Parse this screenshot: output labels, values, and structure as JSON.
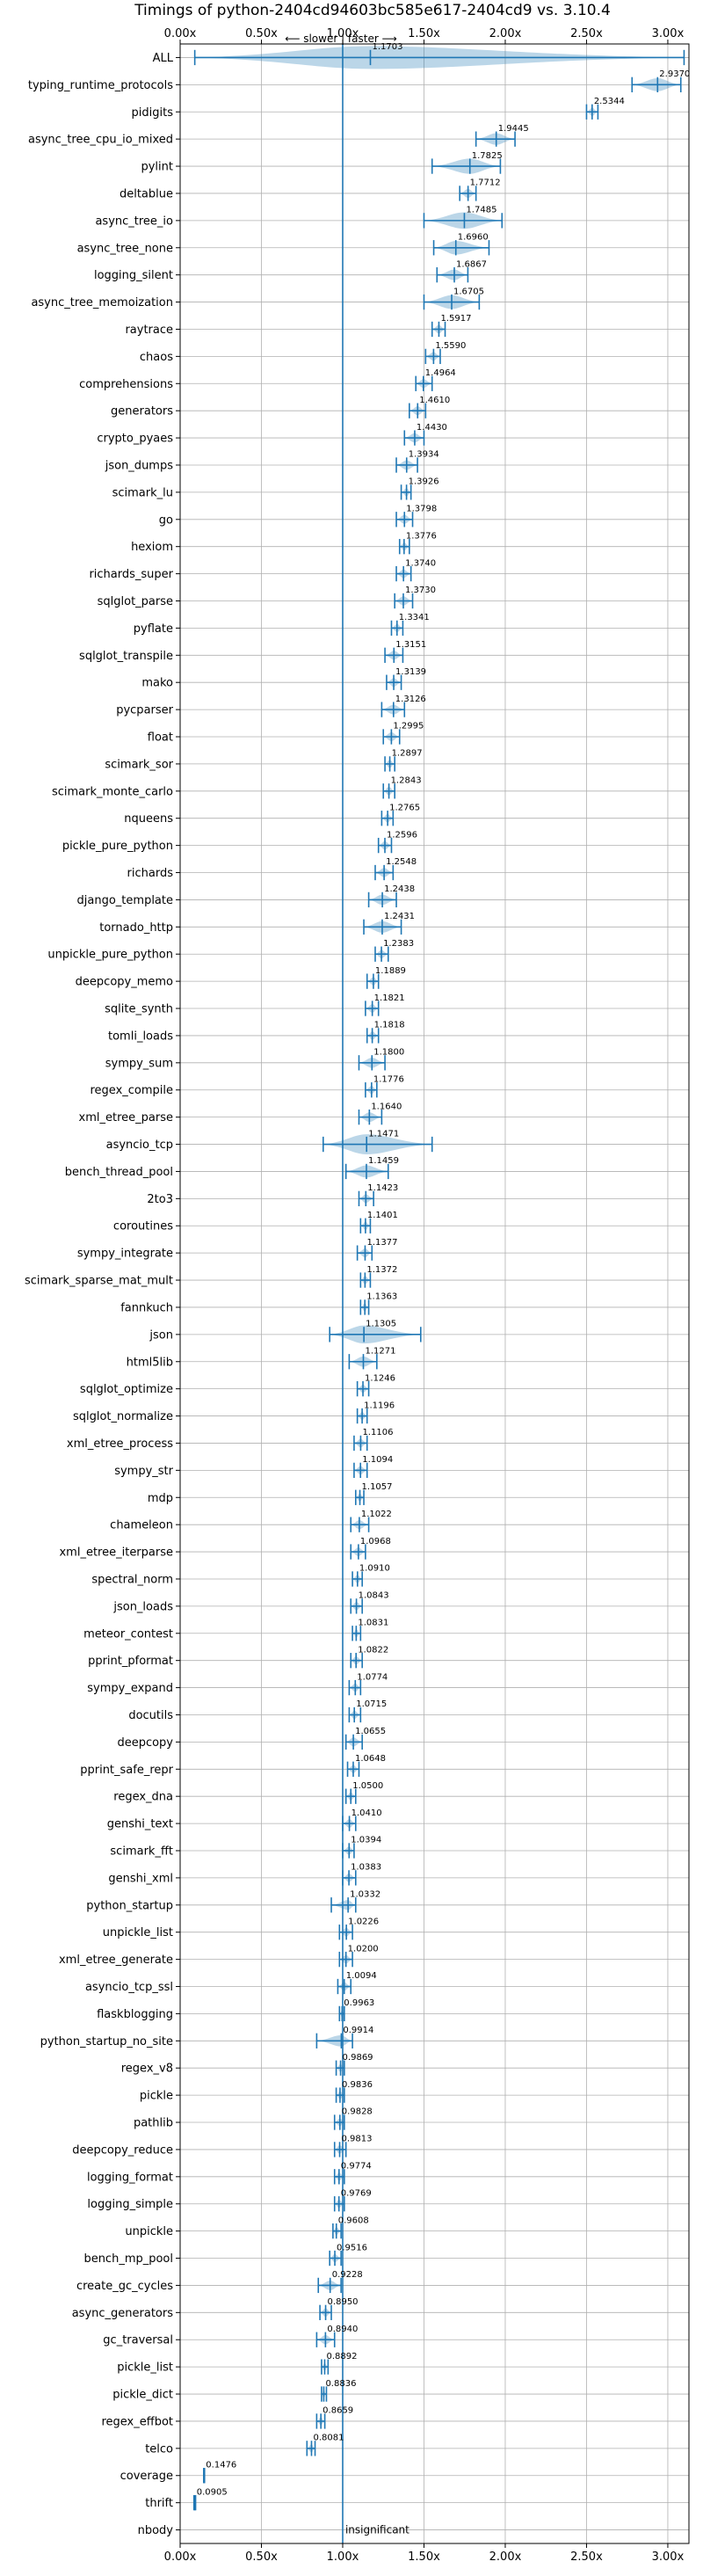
{
  "chart_data": {
    "type": "violin",
    "title": "Timings of python-2404cd94603bc585e617-2404cd9 vs. 3.10.4",
    "xlim": [
      0.0,
      3.13
    ],
    "xticks": [
      "0.00x",
      "0.50x",
      "1.00x",
      "1.50x",
      "2.00x",
      "2.50x",
      "3.00x"
    ],
    "xtick_values": [
      0.0,
      0.5,
      1.0,
      1.5,
      2.0,
      2.5,
      3.0
    ],
    "grid": true,
    "direction_annotation": "⟵ slower | faster ⟶",
    "insignificant_label": "insignificant",
    "colors": {
      "violin": "#1f77b4",
      "significant_line": "#d62728",
      "grid": "#b0b0b0"
    },
    "benchmarks": [
      {
        "name": "ALL",
        "value": 1.1703,
        "label": "1.1703",
        "low": 0.09,
        "high": 3.1
      },
      {
        "name": "typing_runtime_protocols",
        "value": 2.937,
        "label": "2.9370",
        "low": 2.78,
        "high": 3.08
      },
      {
        "name": "pidigits",
        "value": 2.5344,
        "label": "2.5344",
        "low": 2.5,
        "high": 2.57
      },
      {
        "name": "async_tree_cpu_io_mixed",
        "value": 1.9445,
        "label": "1.9445",
        "low": 1.82,
        "high": 2.06
      },
      {
        "name": "pylint",
        "value": 1.7825,
        "label": "1.7825",
        "low": 1.55,
        "high": 1.97
      },
      {
        "name": "deltablue",
        "value": 1.7712,
        "label": "1.7712",
        "low": 1.72,
        "high": 1.82
      },
      {
        "name": "async_tree_io",
        "value": 1.7485,
        "label": "1.7485",
        "low": 1.5,
        "high": 1.98
      },
      {
        "name": "async_tree_none",
        "value": 1.696,
        "label": "1.6960",
        "low": 1.56,
        "high": 1.9
      },
      {
        "name": "logging_silent",
        "value": 1.6867,
        "label": "1.6867",
        "low": 1.58,
        "high": 1.77
      },
      {
        "name": "async_tree_memoization",
        "value": 1.6705,
        "label": "1.6705",
        "low": 1.5,
        "high": 1.84
      },
      {
        "name": "raytrace",
        "value": 1.5917,
        "label": "1.5917",
        "low": 1.55,
        "high": 1.63
      },
      {
        "name": "chaos",
        "value": 1.559,
        "label": "1.5590",
        "low": 1.51,
        "high": 1.6
      },
      {
        "name": "comprehensions",
        "value": 1.4964,
        "label": "1.4964",
        "low": 1.45,
        "high": 1.55
      },
      {
        "name": "generators",
        "value": 1.461,
        "label": "1.4610",
        "low": 1.41,
        "high": 1.51
      },
      {
        "name": "crypto_pyaes",
        "value": 1.443,
        "label": "1.4430",
        "low": 1.38,
        "high": 1.5
      },
      {
        "name": "json_dumps",
        "value": 1.3934,
        "label": "1.3934",
        "low": 1.33,
        "high": 1.46
      },
      {
        "name": "scimark_lu",
        "value": 1.3926,
        "label": "1.3926",
        "low": 1.36,
        "high": 1.42
      },
      {
        "name": "go",
        "value": 1.3798,
        "label": "1.3798",
        "low": 1.33,
        "high": 1.43
      },
      {
        "name": "hexiom",
        "value": 1.3776,
        "label": "1.3776",
        "low": 1.35,
        "high": 1.41
      },
      {
        "name": "richards_super",
        "value": 1.374,
        "label": "1.3740",
        "low": 1.33,
        "high": 1.42
      },
      {
        "name": "sqlglot_parse",
        "value": 1.373,
        "label": "1.3730",
        "low": 1.32,
        "high": 1.43
      },
      {
        "name": "pyflate",
        "value": 1.3341,
        "label": "1.3341",
        "low": 1.3,
        "high": 1.37
      },
      {
        "name": "sqlglot_transpile",
        "value": 1.3151,
        "label": "1.3151",
        "low": 1.26,
        "high": 1.37
      },
      {
        "name": "mako",
        "value": 1.3139,
        "label": "1.3139",
        "low": 1.27,
        "high": 1.36
      },
      {
        "name": "pycparser",
        "value": 1.3126,
        "label": "1.3126",
        "low": 1.24,
        "high": 1.38
      },
      {
        "name": "float",
        "value": 1.2995,
        "label": "1.2995",
        "low": 1.25,
        "high": 1.35
      },
      {
        "name": "scimark_sor",
        "value": 1.2897,
        "label": "1.2897",
        "low": 1.26,
        "high": 1.32
      },
      {
        "name": "scimark_monte_carlo",
        "value": 1.2843,
        "label": "1.2843",
        "low": 1.25,
        "high": 1.32
      },
      {
        "name": "nqueens",
        "value": 1.2765,
        "label": "1.2765",
        "low": 1.24,
        "high": 1.31
      },
      {
        "name": "pickle_pure_python",
        "value": 1.2596,
        "label": "1.2596",
        "low": 1.22,
        "high": 1.3
      },
      {
        "name": "richards",
        "value": 1.2548,
        "label": "1.2548",
        "low": 1.2,
        "high": 1.31
      },
      {
        "name": "django_template",
        "value": 1.2438,
        "label": "1.2438",
        "low": 1.16,
        "high": 1.33
      },
      {
        "name": "tornado_http",
        "value": 1.2431,
        "label": "1.2431",
        "low": 1.13,
        "high": 1.36
      },
      {
        "name": "unpickle_pure_python",
        "value": 1.2383,
        "label": "1.2383",
        "low": 1.2,
        "high": 1.28
      },
      {
        "name": "deepcopy_memo",
        "value": 1.1889,
        "label": "1.1889",
        "low": 1.15,
        "high": 1.22
      },
      {
        "name": "sqlite_synth",
        "value": 1.1821,
        "label": "1.1821",
        "low": 1.14,
        "high": 1.22
      },
      {
        "name": "tomli_loads",
        "value": 1.1818,
        "label": "1.1818",
        "low": 1.15,
        "high": 1.22
      },
      {
        "name": "sympy_sum",
        "value": 1.18,
        "label": "1.1800",
        "low": 1.1,
        "high": 1.26
      },
      {
        "name": "regex_compile",
        "value": 1.1776,
        "label": "1.1776",
        "low": 1.14,
        "high": 1.21
      },
      {
        "name": "xml_etree_parse",
        "value": 1.164,
        "label": "1.1640",
        "low": 1.1,
        "high": 1.24
      },
      {
        "name": "asyncio_tcp",
        "value": 1.1471,
        "label": "1.1471",
        "low": 0.88,
        "high": 1.55
      },
      {
        "name": "bench_thread_pool",
        "value": 1.1459,
        "label": "1.1459",
        "low": 1.02,
        "high": 1.28
      },
      {
        "name": "2to3",
        "value": 1.1423,
        "label": "1.1423",
        "low": 1.1,
        "high": 1.19
      },
      {
        "name": "coroutines",
        "value": 1.1401,
        "label": "1.1401",
        "low": 1.11,
        "high": 1.17
      },
      {
        "name": "sympy_integrate",
        "value": 1.1377,
        "label": "1.1377",
        "low": 1.09,
        "high": 1.18
      },
      {
        "name": "scimark_sparse_mat_mult",
        "value": 1.1372,
        "label": "1.1372",
        "low": 1.11,
        "high": 1.17
      },
      {
        "name": "fannkuch",
        "value": 1.1363,
        "label": "1.1363",
        "low": 1.11,
        "high": 1.16
      },
      {
        "name": "json",
        "value": 1.1305,
        "label": "1.1305",
        "low": 0.92,
        "high": 1.48
      },
      {
        "name": "html5lib",
        "value": 1.1271,
        "label": "1.1271",
        "low": 1.04,
        "high": 1.21
      },
      {
        "name": "sqlglot_optimize",
        "value": 1.1246,
        "label": "1.1246",
        "low": 1.09,
        "high": 1.16
      },
      {
        "name": "sqlglot_normalize",
        "value": 1.1196,
        "label": "1.1196",
        "low": 1.09,
        "high": 1.15
      },
      {
        "name": "xml_etree_process",
        "value": 1.1106,
        "label": "1.1106",
        "low": 1.07,
        "high": 1.15
      },
      {
        "name": "sympy_str",
        "value": 1.1094,
        "label": "1.1094",
        "low": 1.07,
        "high": 1.15
      },
      {
        "name": "mdp",
        "value": 1.1057,
        "label": "1.1057",
        "low": 1.08,
        "high": 1.13
      },
      {
        "name": "chameleon",
        "value": 1.1022,
        "label": "1.1022",
        "low": 1.05,
        "high": 1.16
      },
      {
        "name": "xml_etree_iterparse",
        "value": 1.0968,
        "label": "1.0968",
        "low": 1.05,
        "high": 1.14
      },
      {
        "name": "spectral_norm",
        "value": 1.091,
        "label": "1.0910",
        "low": 1.06,
        "high": 1.12
      },
      {
        "name": "json_loads",
        "value": 1.0843,
        "label": "1.0843",
        "low": 1.05,
        "high": 1.12
      },
      {
        "name": "meteor_contest",
        "value": 1.0831,
        "label": "1.0831",
        "low": 1.06,
        "high": 1.11
      },
      {
        "name": "pprint_pformat",
        "value": 1.0822,
        "label": "1.0822",
        "low": 1.05,
        "high": 1.12
      },
      {
        "name": "sympy_expand",
        "value": 1.0774,
        "label": "1.0774",
        "low": 1.04,
        "high": 1.11
      },
      {
        "name": "docutils",
        "value": 1.0715,
        "label": "1.0715",
        "low": 1.04,
        "high": 1.11
      },
      {
        "name": "deepcopy",
        "value": 1.0655,
        "label": "1.0655",
        "low": 1.02,
        "high": 1.12
      },
      {
        "name": "pprint_safe_repr",
        "value": 1.0648,
        "label": "1.0648",
        "low": 1.03,
        "high": 1.1
      },
      {
        "name": "regex_dna",
        "value": 1.05,
        "label": "1.0500",
        "low": 1.02,
        "high": 1.08
      },
      {
        "name": "genshi_text",
        "value": 1.041,
        "label": "1.0410",
        "low": 1.0,
        "high": 1.08
      },
      {
        "name": "scimark_fft",
        "value": 1.0394,
        "label": "1.0394",
        "low": 1.0,
        "high": 1.07
      },
      {
        "name": "genshi_xml",
        "value": 1.0383,
        "label": "1.0383",
        "low": 1.0,
        "high": 1.08
      },
      {
        "name": "python_startup",
        "value": 1.0332,
        "label": "1.0332",
        "low": 0.93,
        "high": 1.08
      },
      {
        "name": "unpickle_list",
        "value": 1.0226,
        "label": "1.0226",
        "low": 0.98,
        "high": 1.06
      },
      {
        "name": "xml_etree_generate",
        "value": 1.02,
        "label": "1.0200",
        "low": 0.98,
        "high": 1.06
      },
      {
        "name": "asyncio_tcp_ssl",
        "value": 1.0094,
        "label": "1.0094",
        "low": 0.97,
        "high": 1.05
      },
      {
        "name": "flaskblogging",
        "value": 0.9963,
        "label": "0.9963",
        "low": 0.98,
        "high": 1.01
      },
      {
        "name": "python_startup_no_site",
        "value": 0.9914,
        "label": "0.9914",
        "low": 0.84,
        "high": 1.06
      },
      {
        "name": "regex_v8",
        "value": 0.9869,
        "label": "0.9869",
        "low": 0.96,
        "high": 1.01
      },
      {
        "name": "pickle",
        "value": 0.9836,
        "label": "0.9836",
        "low": 0.96,
        "high": 1.01
      },
      {
        "name": "pathlib",
        "value": 0.9828,
        "label": "0.9828",
        "low": 0.95,
        "high": 1.01
      },
      {
        "name": "deepcopy_reduce",
        "value": 0.9813,
        "label": "0.9813",
        "low": 0.95,
        "high": 1.02
      },
      {
        "name": "logging_format",
        "value": 0.9774,
        "label": "0.9774",
        "low": 0.95,
        "high": 1.01
      },
      {
        "name": "logging_simple",
        "value": 0.9769,
        "label": "0.9769",
        "low": 0.95,
        "high": 1.01
      },
      {
        "name": "unpickle",
        "value": 0.9608,
        "label": "0.9608",
        "low": 0.94,
        "high": 0.99
      },
      {
        "name": "bench_mp_pool",
        "value": 0.9516,
        "label": "0.9516",
        "low": 0.92,
        "high": 0.99
      },
      {
        "name": "create_gc_cycles",
        "value": 0.9228,
        "label": "0.9228",
        "low": 0.85,
        "high": 0.99
      },
      {
        "name": "async_generators",
        "value": 0.895,
        "label": "0.8950",
        "low": 0.86,
        "high": 0.93
      },
      {
        "name": "gc_traversal",
        "value": 0.894,
        "label": "0.8940",
        "low": 0.84,
        "high": 0.95
      },
      {
        "name": "pickle_list",
        "value": 0.8892,
        "label": "0.8892",
        "low": 0.87,
        "high": 0.91
      },
      {
        "name": "pickle_dict",
        "value": 0.8836,
        "label": "0.8836",
        "low": 0.87,
        "high": 0.9
      },
      {
        "name": "regex_effbot",
        "value": 0.8659,
        "label": "0.8659",
        "low": 0.84,
        "high": 0.89
      },
      {
        "name": "telco",
        "value": 0.8081,
        "label": "0.8081",
        "low": 0.78,
        "high": 0.83
      },
      {
        "name": "coverage",
        "value": 0.1476,
        "label": "0.1476",
        "low": 0.145,
        "high": 0.15
      },
      {
        "name": "thrift",
        "value": 0.0905,
        "label": "0.0905",
        "low": 0.085,
        "high": 0.095
      },
      {
        "name": "nbody",
        "value": null,
        "label": "insignificant",
        "low": null,
        "high": null
      }
    ]
  }
}
